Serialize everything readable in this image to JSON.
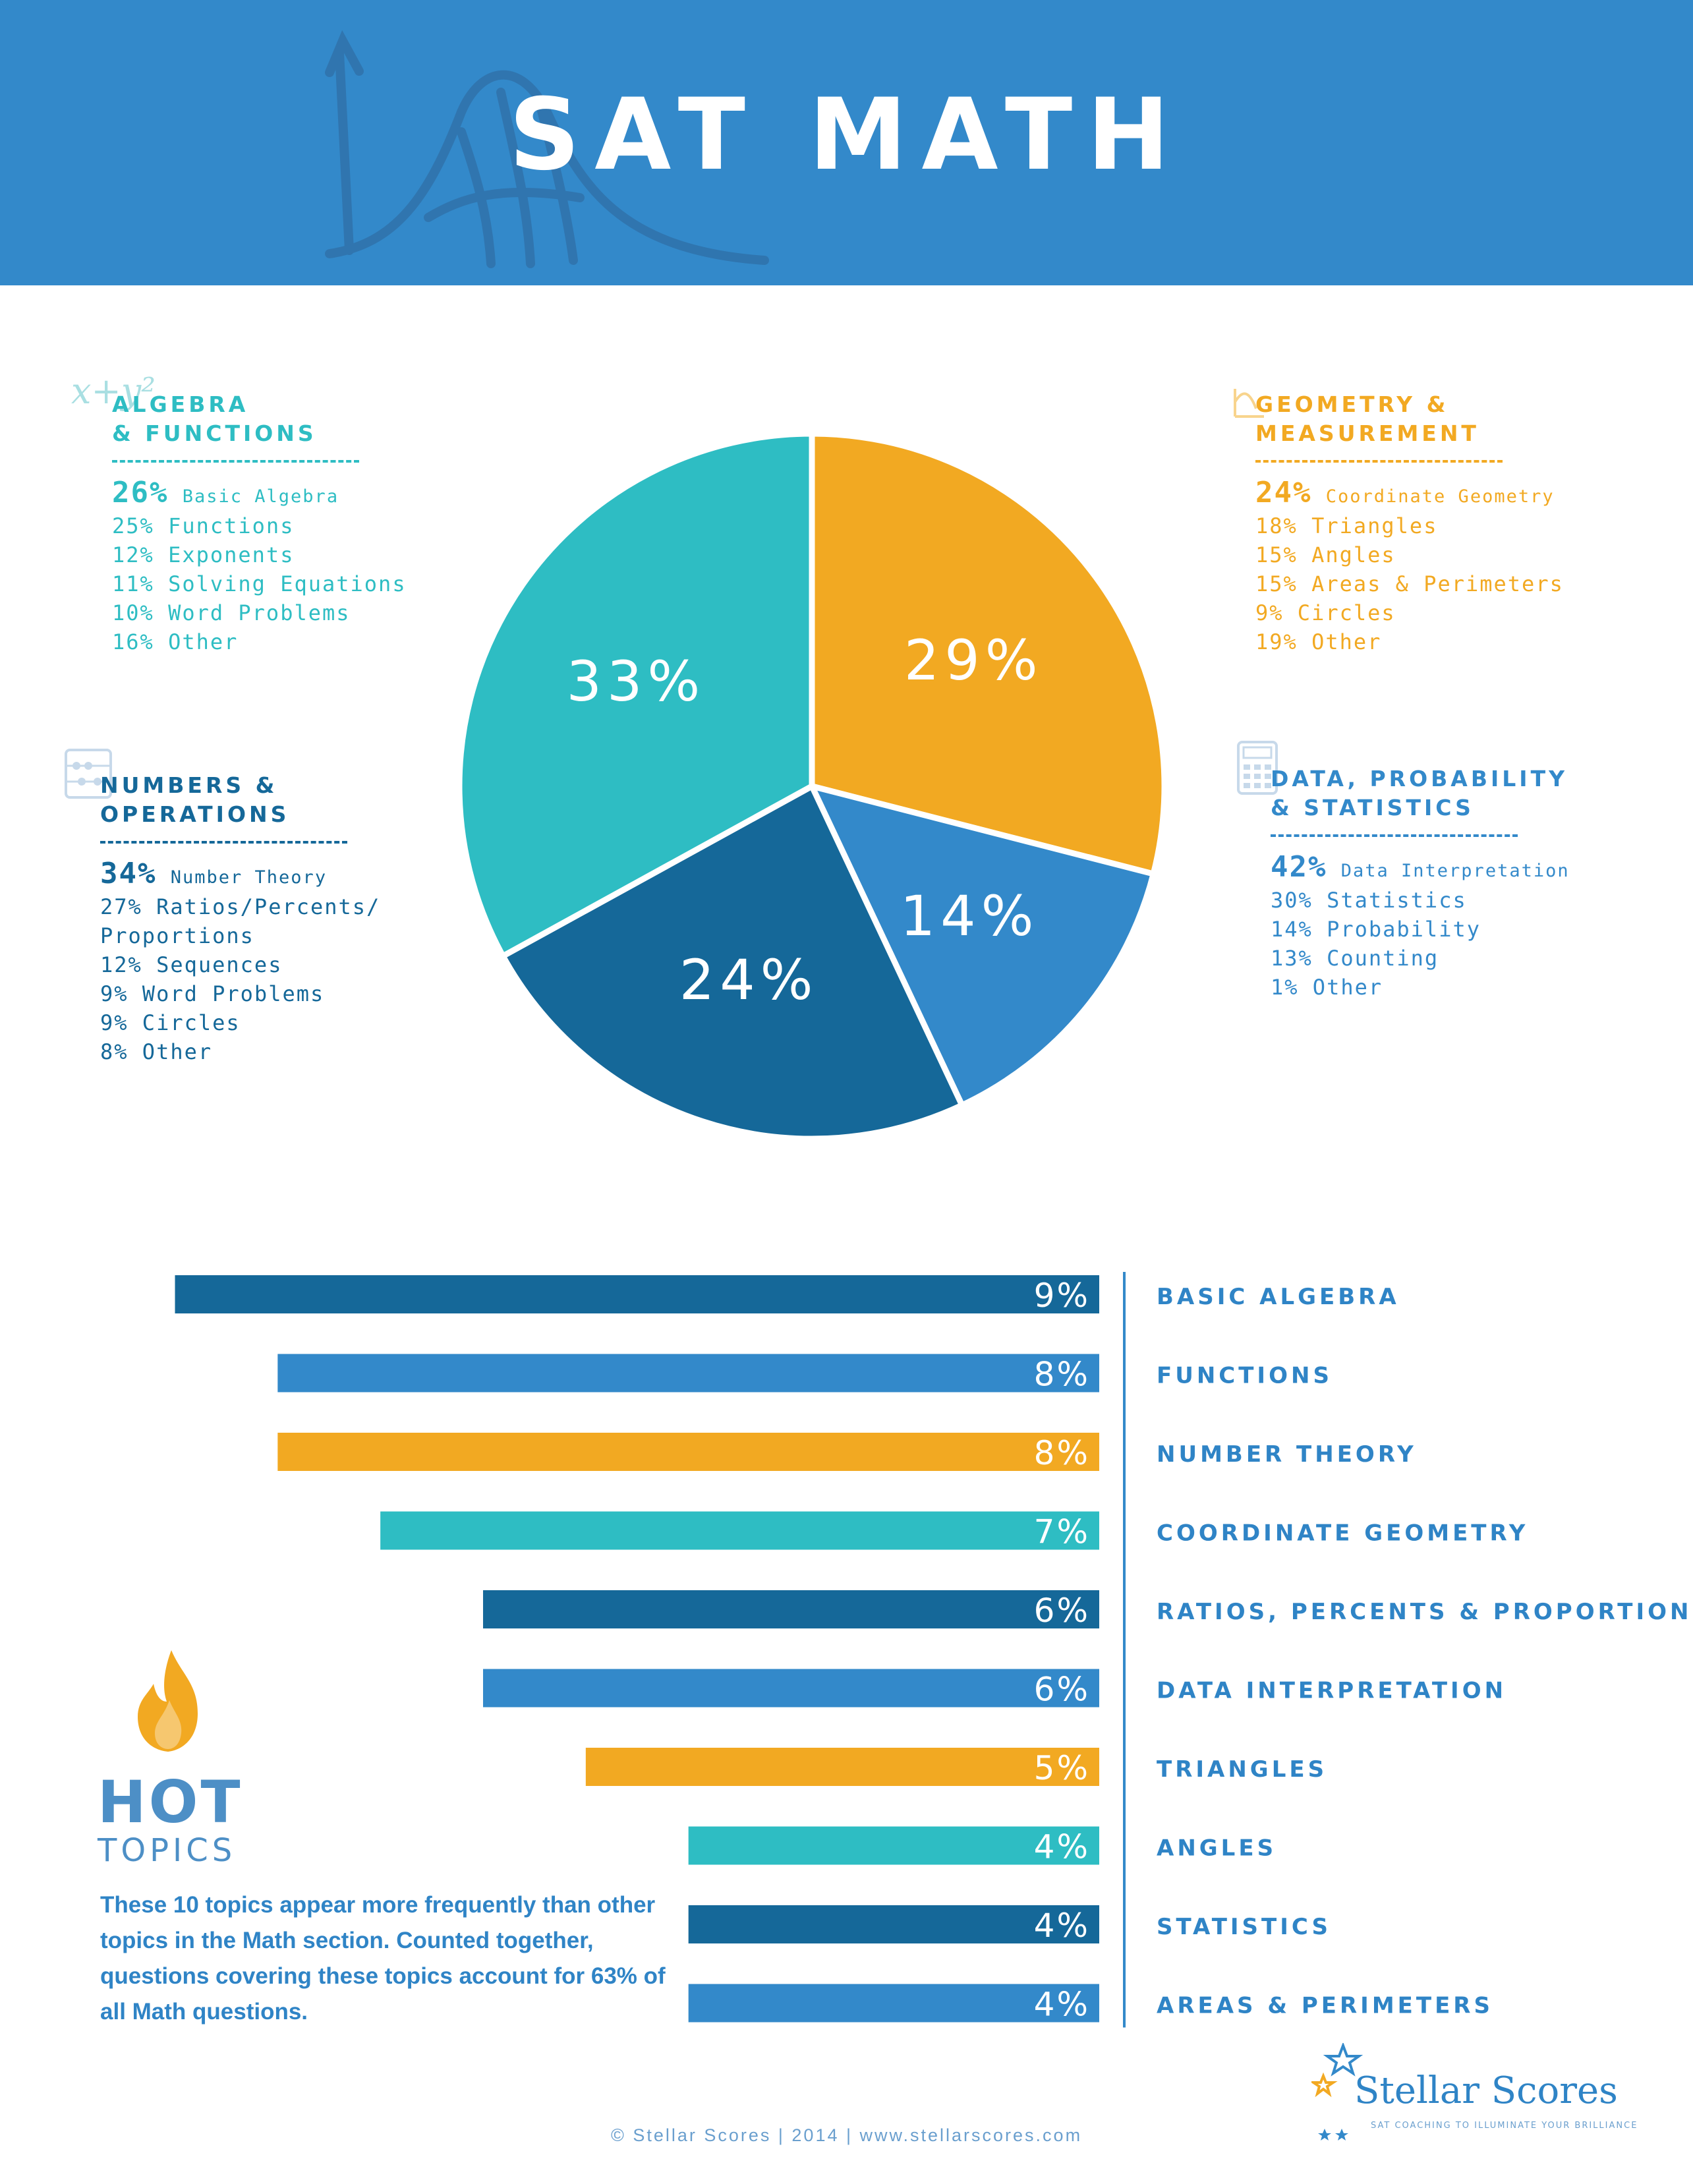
{
  "title": "SAT MATH",
  "colors": {
    "header": "#3389ca",
    "teal": "#2ebdc3",
    "orange": "#f2a922",
    "navy": "#156899",
    "blue": "#3389ca",
    "label": "#2f84c6"
  },
  "categories": {
    "algebra": {
      "title": "ALGEBRA\n& FUNCTIONS",
      "icon": "xy-squared-icon",
      "items": [
        {
          "pct": "26%",
          "label": "Basic Algebra"
        },
        {
          "pct": "25%",
          "label": "Functions"
        },
        {
          "pct": "12%",
          "label": "Exponents"
        },
        {
          "pct": "11%",
          "label": "Solving Equations"
        },
        {
          "pct": "10%",
          "label": "Word Problems"
        },
        {
          "pct": "16%",
          "label": "Other"
        }
      ]
    },
    "geometry": {
      "title": "GEOMETRY &\nMEASUREMENT",
      "icon": "geometry-icon",
      "items": [
        {
          "pct": "24%",
          "label": "Coordinate Geometry"
        },
        {
          "pct": "18%",
          "label": "Triangles"
        },
        {
          "pct": "15%",
          "label": "Angles"
        },
        {
          "pct": "15%",
          "label": "Areas & Perimeters"
        },
        {
          "pct": "9%",
          "label": "Circles"
        },
        {
          "pct": "19%",
          "label": "Other"
        }
      ]
    },
    "numbers": {
      "title": "NUMBERS &\nOPERATIONS",
      "icon": "abacus-icon",
      "items": [
        {
          "pct": "34%",
          "label": "Number Theory"
        },
        {
          "pct": "27%",
          "label": "Ratios/Percents/"
        },
        {
          "pct": "",
          "label": "Proportions"
        },
        {
          "pct": "12%",
          "label": "Sequences"
        },
        {
          "pct": "9%",
          "label": "Word Problems"
        },
        {
          "pct": "9%",
          "label": "Circles"
        },
        {
          "pct": "8%",
          "label": "Other"
        }
      ]
    },
    "data": {
      "title": "DATA, PROBABILITY\n& STATISTICS",
      "icon": "calculator-icon",
      "items": [
        {
          "pct": "42%",
          "label": "Data Interpretation"
        },
        {
          "pct": "30%",
          "label": "Statistics"
        },
        {
          "pct": "14%",
          "label": "Probability"
        },
        {
          "pct": "13%",
          "label": "Counting"
        },
        {
          "pct": "1%",
          "label": "Other"
        }
      ]
    }
  },
  "chart_data": [
    {
      "type": "pie",
      "slices": [
        {
          "value": 29,
          "label": "29%",
          "color": "#f2a922"
        },
        {
          "value": 14,
          "label": "14%",
          "color": "#3389ca"
        },
        {
          "value": 24,
          "label": "24%",
          "color": "#156899"
        },
        {
          "value": 33,
          "label": "33%",
          "color": "#2ebdc3"
        }
      ]
    },
    {
      "type": "bar",
      "orientation": "horizontal",
      "categories": [
        "BASIC ALGEBRA",
        "FUNCTIONS",
        "NUMBER THEORY",
        "COORDINATE GEOMETRY",
        "RATIOS, PERCENTS & PROPORTIONS",
        "DATA INTERPRETATION",
        "TRIANGLES",
        "ANGLES",
        "STATISTICS",
        "AREAS & PERIMETERS"
      ],
      "values": [
        9,
        8,
        8,
        7,
        6,
        6,
        5,
        4,
        4,
        4
      ],
      "value_labels": [
        "9%",
        "8%",
        "8%",
        "7%",
        "6%",
        "6%",
        "5%",
        "4%",
        "4%",
        "4%"
      ],
      "colors": [
        "#156899",
        "#3389ca",
        "#f2a922",
        "#2ebdc3",
        "#156899",
        "#3389ca",
        "#f2a922",
        "#2ebdc3",
        "#156899",
        "#3389ca"
      ],
      "xlim": [
        0,
        9.6
      ]
    }
  ],
  "hot_topics": {
    "title": "HOT",
    "subtitle": "TOPICS",
    "icon": "flame-icon",
    "description": "These 10 topics appear more frequently than other topics in the Math section. Counted together, questions covering these topics account for 63% of all Math questions."
  },
  "logo": {
    "name": "Stellar Scores",
    "tagline": "SAT COACHING TO ILLUMINATE YOUR BRILLIANCE"
  },
  "footer": "© Stellar Scores | 2014 | www.stellarscores.com"
}
